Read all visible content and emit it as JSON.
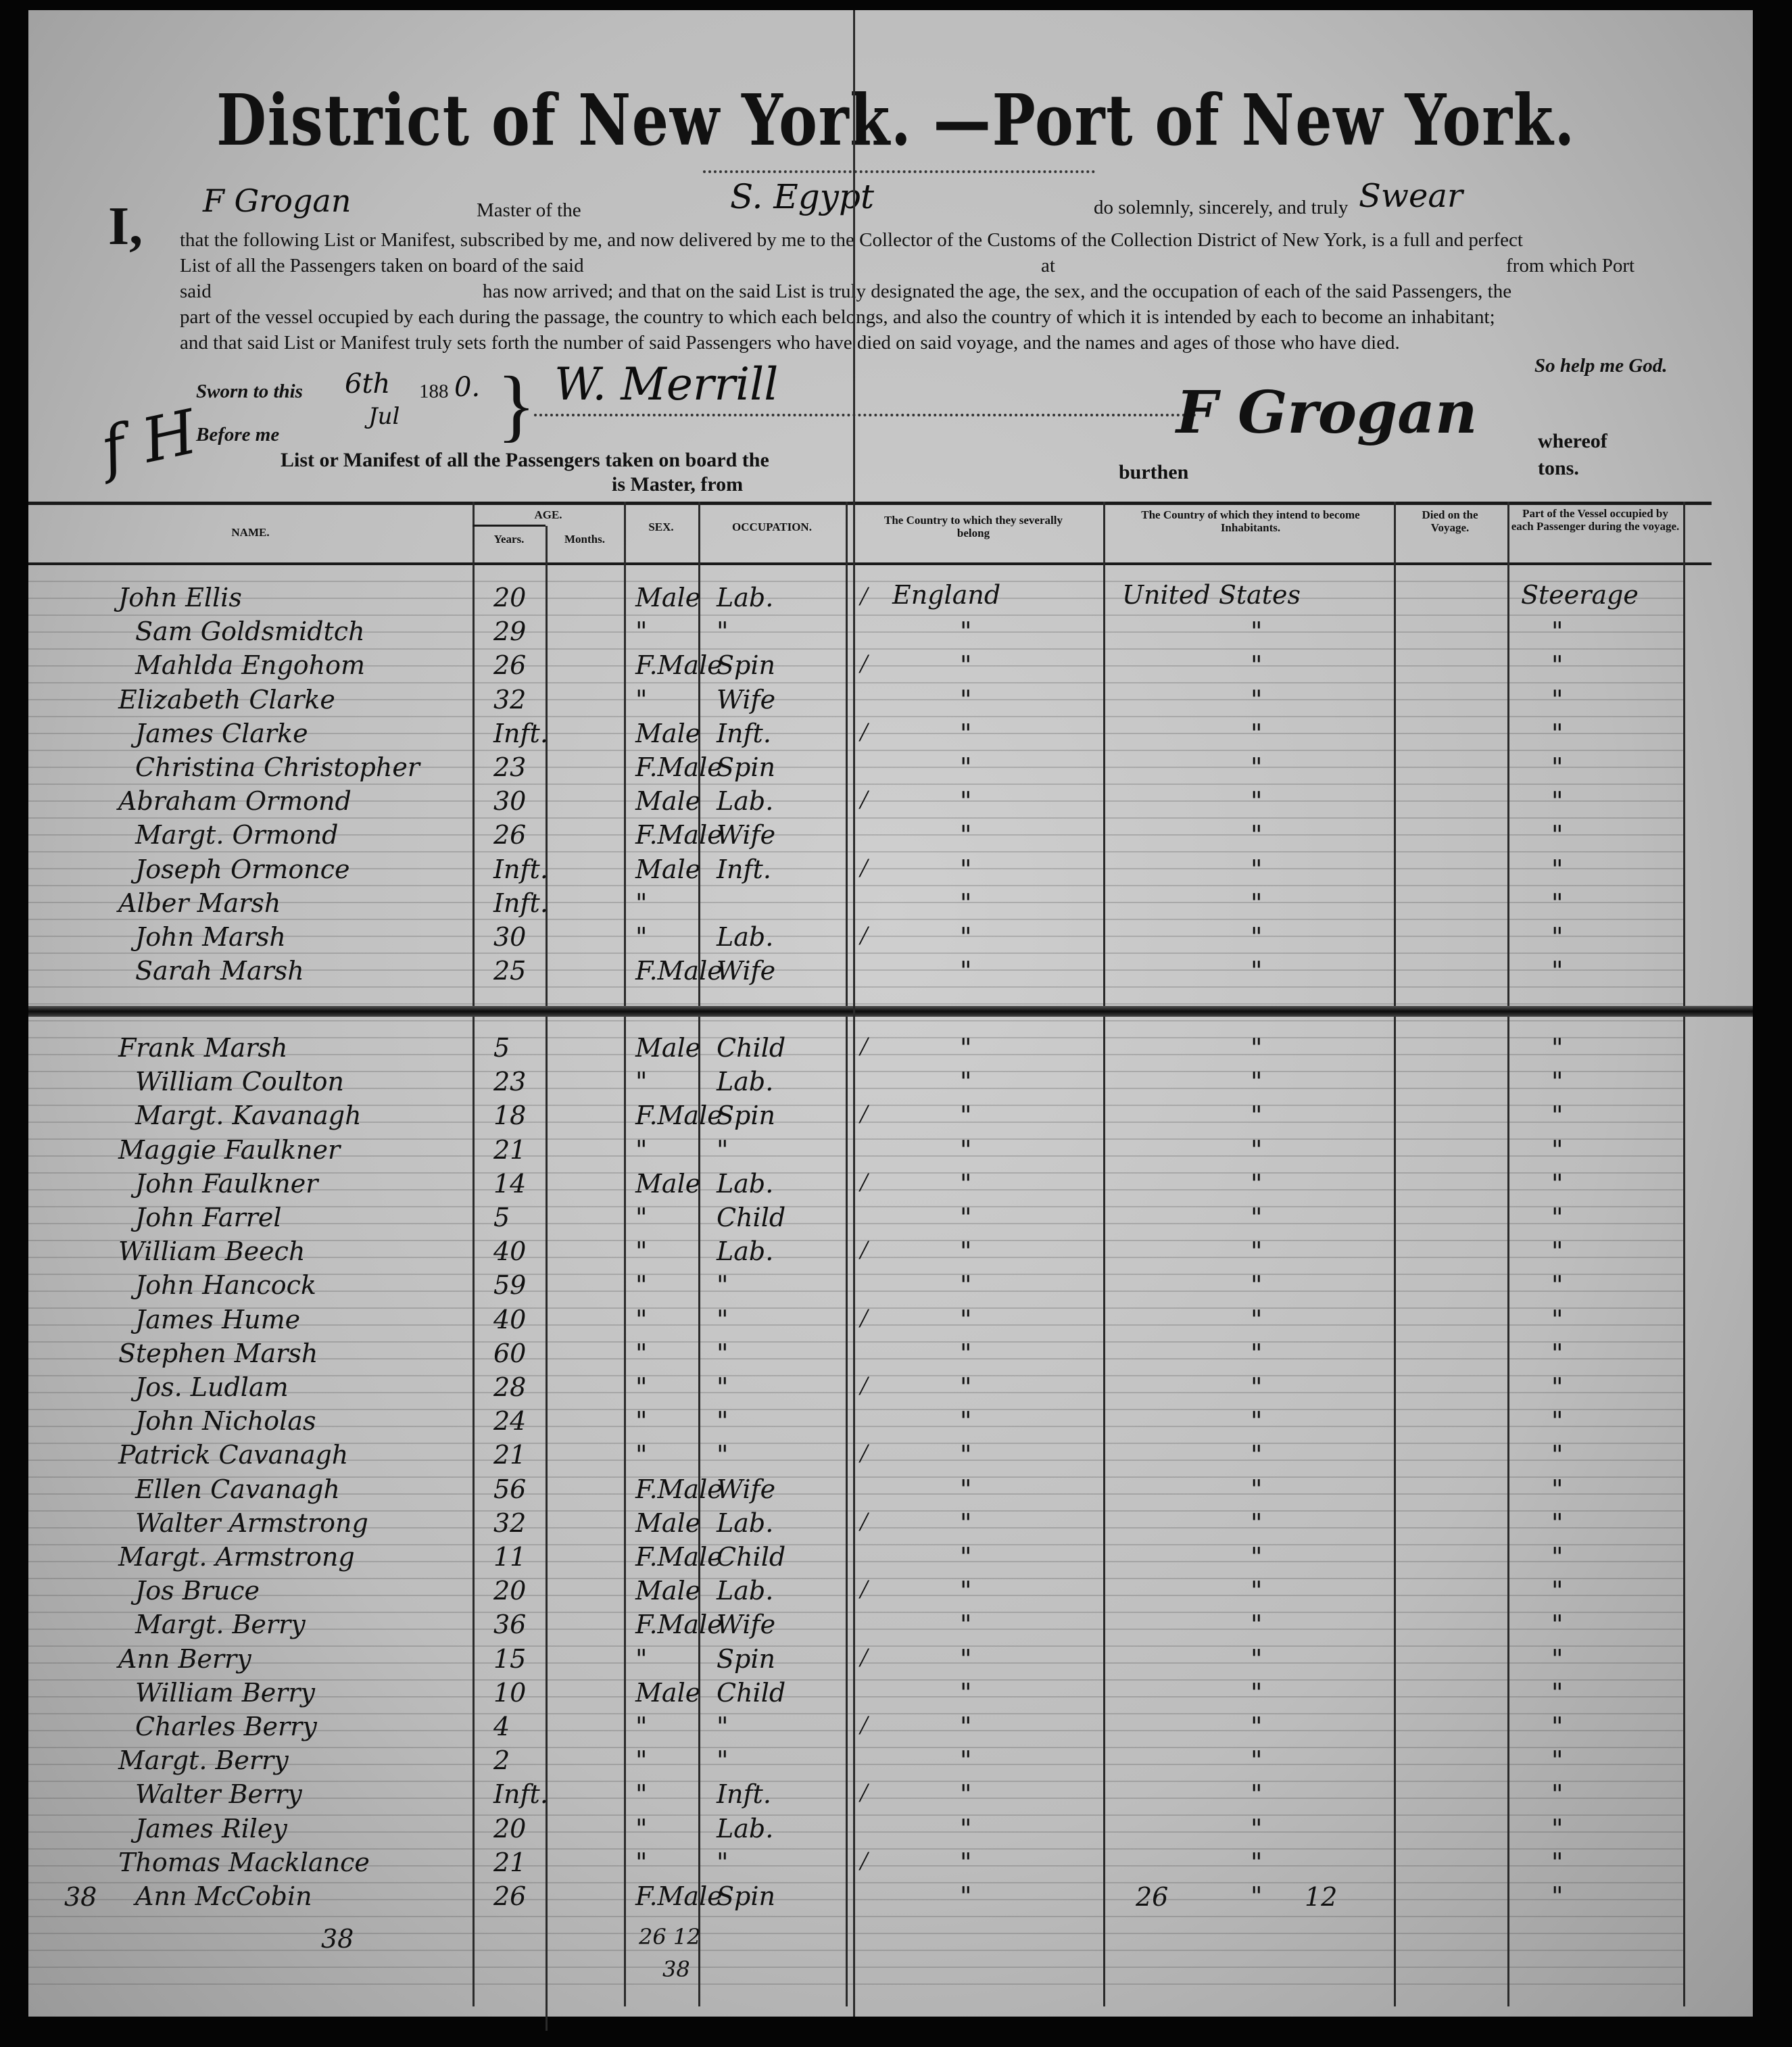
{
  "document": {
    "title": "District of New York. —Port of New York.",
    "oath": {
      "pronoun": "I,",
      "master_name_handwritten": "F Grogan",
      "master_of_the": "Master of the",
      "vessel_handwritten": "S. Egypt",
      "solemnly": "do solemnly, sincerely, and truly",
      "swear_handwritten": "Swear",
      "line2": "that the following List or Manifest, subscribed by me, and now delivered by me to the Collector of the Customs of the Collection District of New York, is a full and perfect",
      "line3_left": "List of all the Passengers taken on board of the said",
      "line3_at": "at",
      "line3_right": "from which Port",
      "line4_said": "said",
      "line4": "has now arrived; and that on the said List is truly designated the age, the sex, and the occupation of each of the said Passengers, the",
      "line5": "part of the vessel occupied by each during the passage, the country to which each belongs, and also the country of which it is intended by each to become an inhabitant;",
      "line6": "and that said List or Manifest truly sets forth the number of said Passengers who have died on said voyage, and the names and ages of those who have died.",
      "closing": "So help me God."
    },
    "sworn": {
      "label": "Sworn to this",
      "day_handwritten": "6th",
      "month_handwritten": "Jul",
      "year_prefix": "188",
      "year_suffix_handwritten": "0.",
      "before_me": "Before me",
      "officer_signature": "W. Merrill",
      "master_signature": "F Grogan"
    },
    "manifest_line": {
      "text": "List or Manifest of all the Passengers taken on board the",
      "is_master_from": "is Master, from",
      "burthen": "burthen",
      "whereof": "whereof",
      "tons": "tons."
    }
  },
  "table": {
    "headers": {
      "name": "NAME.",
      "age": "AGE.",
      "years": "Years.",
      "months": "Months.",
      "sex": "SEX.",
      "occupation": "OCCUPATION.",
      "country_belong": "The Country to which they severally belong",
      "country_inhabit": "The Country of which they intend to become Inhabitants.",
      "died": "Died on the Voyage.",
      "part_vessel": "Part of the Vessel occupied by each Passenger during the voyage."
    },
    "first_row_values": {
      "country_belong": "England",
      "country_inhabit": "United States",
      "part_vessel": "Steerage"
    },
    "ditto_mark": "\"",
    "rows_upper": [
      {
        "name": "John Ellis",
        "age": "20",
        "sex": "Male",
        "occupation": "Lab."
      },
      {
        "name": "Sam Goldsmidtch",
        "age": "29",
        "sex": "\"",
        "occupation": "\""
      },
      {
        "name": "Mahlda Engohom",
        "age": "26",
        "sex": "F.Male",
        "occupation": "Spin"
      },
      {
        "name": "Elizabeth Clarke",
        "age": "32",
        "sex": "\"",
        "occupation": "Wife"
      },
      {
        "name": "James Clarke",
        "age": "Inft.",
        "sex": "Male",
        "occupation": "Inft."
      },
      {
        "name": "Christina Christopher",
        "age": "23",
        "sex": "F.Male",
        "occupation": "Spin"
      },
      {
        "name": "Abraham Ormond",
        "age": "30",
        "sex": "Male",
        "occupation": "Lab."
      },
      {
        "name": "Margt. Ormond",
        "age": "26",
        "sex": "F.Male",
        "occupation": "Wife"
      },
      {
        "name": "Joseph Ormonce",
        "age": "Inft.",
        "sex": "Male",
        "occupation": "Inft."
      },
      {
        "name": "Alber Marsh",
        "age": "Inft.",
        "sex": "\"",
        "occupation": ""
      },
      {
        "name": "John Marsh",
        "age": "30",
        "sex": "\"",
        "occupation": "Lab."
      },
      {
        "name": "Sarah Marsh",
        "age": "25",
        "sex": "F.Male",
        "occupation": "Wife"
      }
    ],
    "rows_lower": [
      {
        "name": "Frank Marsh",
        "age": "5",
        "sex": "Male",
        "occupation": "Child"
      },
      {
        "name": "William Coulton",
        "age": "23",
        "sex": "\"",
        "occupation": "Lab."
      },
      {
        "name": "Margt. Kavanagh",
        "age": "18",
        "sex": "F.Male",
        "occupation": "Spin"
      },
      {
        "name": "Maggie Faulkner",
        "age": "21",
        "sex": "\"",
        "occupation": "\""
      },
      {
        "name": "John Faulkner",
        "age": "14",
        "sex": "Male",
        "occupation": "Lab."
      },
      {
        "name": "John Farrel",
        "age": "5",
        "sex": "\"",
        "occupation": "Child"
      },
      {
        "name": "William Beech",
        "age": "40",
        "sex": "\"",
        "occupation": "Lab."
      },
      {
        "name": "John Hancock",
        "age": "59",
        "sex": "\"",
        "occupation": "\""
      },
      {
        "name": "James Hume",
        "age": "40",
        "sex": "\"",
        "occupation": "\""
      },
      {
        "name": "Stephen Marsh",
        "age": "60",
        "sex": "\"",
        "occupation": "\""
      },
      {
        "name": "Jos. Ludlam",
        "age": "28",
        "sex": "\"",
        "occupation": "\""
      },
      {
        "name": "John Nicholas",
        "age": "24",
        "sex": "\"",
        "occupation": "\""
      },
      {
        "name": "Patrick Cavanagh",
        "age": "21",
        "sex": "\"",
        "occupation": "\""
      },
      {
        "name": "Ellen Cavanagh",
        "age": "56",
        "sex": "F.Male",
        "occupation": "Wife"
      },
      {
        "name": "Walter Armstrong",
        "age": "32",
        "sex": "Male",
        "occupation": "Lab."
      },
      {
        "name": "Margt. Armstrong",
        "age": "11",
        "sex": "F.Male",
        "occupation": "Child"
      },
      {
        "name": "Jos Bruce",
        "age": "20",
        "sex": "Male",
        "occupation": "Lab."
      },
      {
        "name": "Margt. Berry",
        "age": "36",
        "sex": "F.Male",
        "occupation": "Wife"
      },
      {
        "name": "Ann Berry",
        "age": "15",
        "sex": "\"",
        "occupation": "Spin"
      },
      {
        "name": "William Berry",
        "age": "10",
        "sex": "Male",
        "occupation": "Child"
      },
      {
        "name": "Charles Berry",
        "age": "4",
        "sex": "\"",
        "occupation": "\""
      },
      {
        "name": "Margt. Berry",
        "age": "2",
        "sex": "\"",
        "occupation": "\""
      },
      {
        "name": "Walter Berry",
        "age": "Inft.",
        "sex": "\"",
        "occupation": "Inft."
      },
      {
        "name": "James Riley",
        "age": "20",
        "sex": "\"",
        "occupation": "Lab."
      },
      {
        "name": "Thomas Macklance",
        "age": "21",
        "sex": "\"",
        "occupation": "\""
      },
      {
        "name": "Ann McCobin",
        "age": "26",
        "sex": "F.Male",
        "occupation": "Spin"
      }
    ],
    "totals": {
      "left_margin_count": "38",
      "below_name_count": "38",
      "below_sex_tally": "26 12",
      "below_sex_total": "38",
      "inhabit_col_left": "26",
      "inhabit_col_right": "12"
    }
  }
}
